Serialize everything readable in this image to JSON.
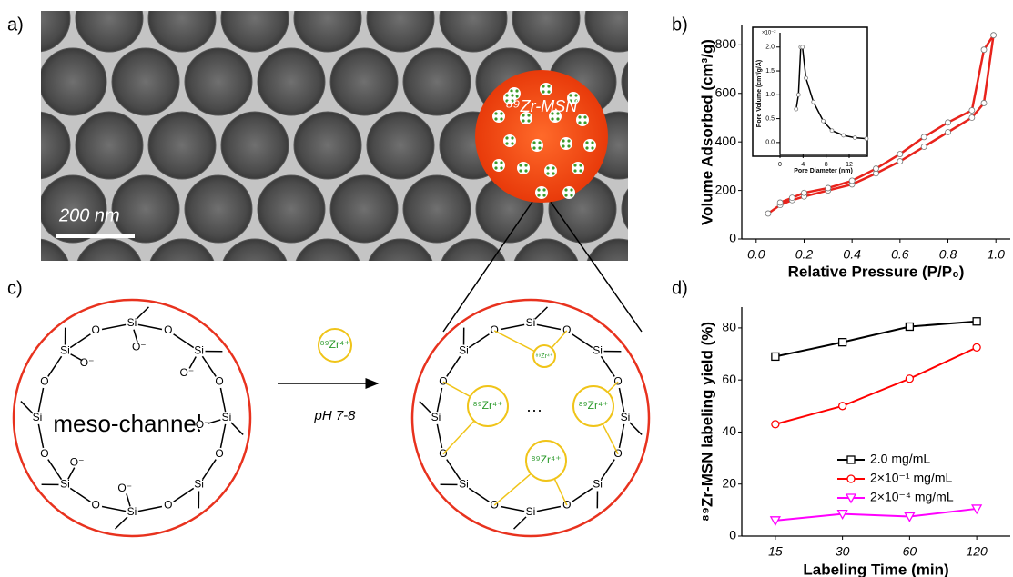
{
  "panel_labels": [
    "a)",
    "b)",
    "c)",
    "d)"
  ],
  "micrograph": {
    "label": "⁸⁹Zr-MSN",
    "scale_bar": "200 nm"
  },
  "scheme": {
    "channel_label": "meso-channel",
    "reagent": "⁸⁹Zr⁴⁺",
    "condition": "pH 7-8",
    "left_ring": [
      "Si",
      "O",
      "Si",
      "O",
      "Si",
      "O",
      "Si",
      "O",
      "Si",
      "O",
      "Si",
      "O",
      "Si",
      "O",
      "Si",
      "O"
    ],
    "left_pendants": [
      "O⁻",
      "O⁻",
      "O⁻",
      "O⁻",
      "O⁻",
      "O⁻"
    ],
    "right_ring": [
      "Si",
      "O",
      "Si",
      "O",
      "Si",
      "O",
      "Si",
      "O",
      "Si",
      "O",
      "Si",
      "O",
      "Si",
      "O",
      "Si",
      "O"
    ],
    "bound_ions": [
      "⁸⁹Zr⁴⁺",
      "⁸⁹Zr⁴⁺",
      "⁸⁹Zr⁴⁺",
      "⁸⁹Zr⁴⁺"
    ],
    "ellipsis": "···"
  },
  "chart_data": [
    {
      "type": "line",
      "xlabel": "Relative Pressure (P/P₀)",
      "ylabel": "Volume Adsorbed (cm³/g)",
      "x": [
        0.05,
        0.1,
        0.15,
        0.2,
        0.3,
        0.4,
        0.5,
        0.6,
        0.7,
        0.8,
        0.9,
        0.95,
        0.99,
        0.95,
        0.9,
        0.8,
        0.7,
        0.6,
        0.5,
        0.4,
        0.3,
        0.2,
        0.15,
        0.1
      ],
      "values": [
        105,
        140,
        160,
        175,
        200,
        225,
        270,
        320,
        380,
        440,
        500,
        560,
        840,
        780,
        530,
        480,
        420,
        350,
        290,
        240,
        210,
        190,
        170,
        150
      ],
      "color": "#e8231c",
      "marker": "circle",
      "xlim": [
        -0.06,
        1.06
      ],
      "ylim": [
        0,
        880
      ],
      "xticks": [
        {
          "value": 0,
          "label": "0.0"
        },
        0.2,
        0.4,
        0.6,
        0.8,
        {
          "value": 1,
          "label": "1.0"
        }
      ],
      "yticks": [
        0,
        200,
        400,
        600,
        800
      ]
    },
    {
      "type": "line",
      "xlabel": "Pore Diameter (nm)",
      "ylabel": "Pore Volume (cm³/g/Å)",
      "y_scale_label": "×10⁻²",
      "x": [
        2.8,
        3.2,
        3.6,
        3.9,
        4.5,
        5.8,
        7.5,
        9,
        11,
        13,
        15
      ],
      "values": [
        0.7,
        1.0,
        2.0,
        2.0,
        1.35,
        0.85,
        0.45,
        0.25,
        0.15,
        0.1,
        0.08
      ],
      "color": "#000000",
      "marker": "circle",
      "xlim": [
        0,
        15
      ],
      "ylim": [
        -0.25,
        2.3
      ],
      "xticks": [
        0,
        4,
        8,
        12
      ],
      "yticks": [
        {
          "value": 0,
          "label": "0.0"
        },
        0.5,
        {
          "value": 1,
          "label": "1.0"
        },
        1.5,
        {
          "value": 2,
          "label": "2.0"
        }
      ]
    },
    {
      "type": "line",
      "xlabel": "Labeling Time (min)",
      "ylabel": "⁸⁹Zr-MSN labeling yield (%)",
      "categories": [
        "15",
        "30",
        "60",
        "120"
      ],
      "series": [
        {
          "name": "2.0 mg/mL",
          "color": "#000000",
          "marker": "square",
          "values": [
            69,
            74.5,
            80.5,
            82.5
          ]
        },
        {
          "name": "2×10⁻¹ mg/mL",
          "color": "#ff0000",
          "marker": "circle",
          "values": [
            43,
            50,
            60.5,
            72.5
          ]
        },
        {
          "name": "2×10⁻⁴ mg/mL",
          "color": "#ff00ff",
          "marker": "triangle-down",
          "values": [
            6,
            8.5,
            7.5,
            10.5
          ]
        }
      ],
      "ylim": [
        0,
        88
      ],
      "yticks": [
        0,
        20,
        40,
        60,
        80
      ],
      "legend": "lower right"
    }
  ]
}
